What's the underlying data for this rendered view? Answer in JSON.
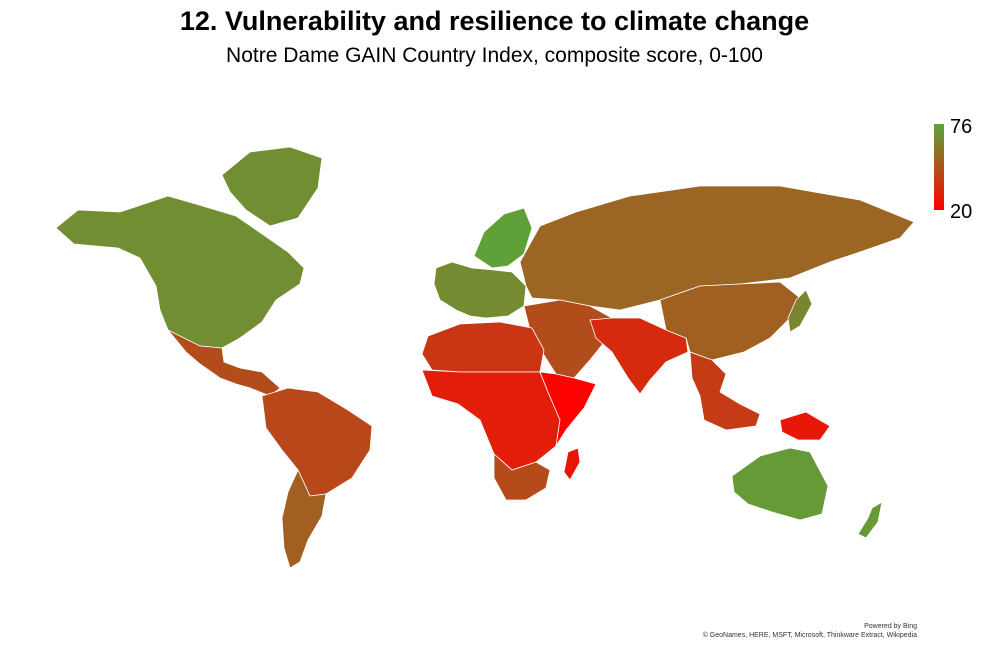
{
  "title": "12. Vulnerability and resilience to climate change",
  "subtitle": "Notre Dame GAIN Country Index, composite score, 0-100",
  "legend": {
    "max": "76",
    "min": "20",
    "max_color": "#5aa63a",
    "min_color": "#ff0000"
  },
  "attribution": {
    "powered_by": "Powered by Bing",
    "credits": "© GeoNames, HERE, MSFT, Microsoft, Thinkware Extract, Wikipedia"
  },
  "regions": [
    {
      "name": "North America",
      "score": 68
    },
    {
      "name": "Greenland",
      "score": 68
    },
    {
      "name": "Mexico & Central America",
      "score": 46
    },
    {
      "name": "South America",
      "score": 44
    },
    {
      "name": "Southern Cone",
      "score": 52
    },
    {
      "name": "Northern Europe",
      "score": 74
    },
    {
      "name": "Western Europe",
      "score": 67
    },
    {
      "name": "Russia & Central Asia",
      "score": 54
    },
    {
      "name": "Middle East",
      "score": 46
    },
    {
      "name": "North Africa",
      "score": 38
    },
    {
      "name": "Sub-Saharan Africa",
      "score": 30
    },
    {
      "name": "Horn of Africa",
      "score": 21
    },
    {
      "name": "Southern Africa",
      "score": 45
    },
    {
      "name": "Madagascar",
      "score": 27
    },
    {
      "name": "South Asia",
      "score": 34
    },
    {
      "name": "China & East Asia",
      "score": 52
    },
    {
      "name": "Japan",
      "score": 65
    },
    {
      "name": "Southeast Asia",
      "score": 40
    },
    {
      "name": "Papua New Guinea",
      "score": 28
    },
    {
      "name": "Australia",
      "score": 72
    },
    {
      "name": "New Zealand",
      "score": 72
    }
  ]
}
